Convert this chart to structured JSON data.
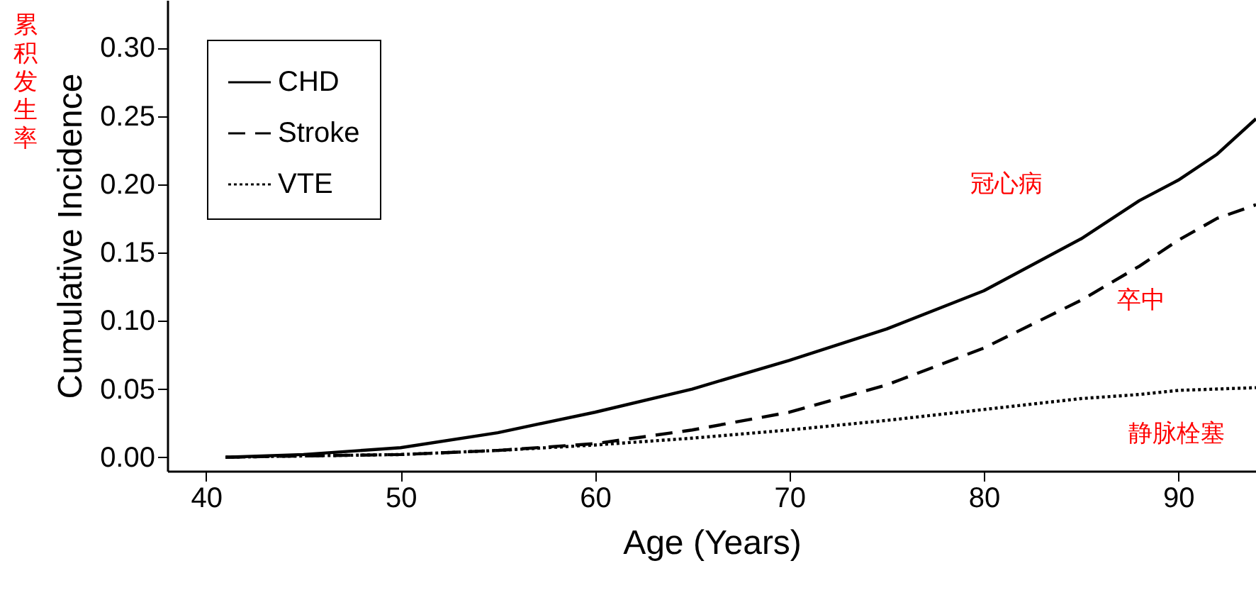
{
  "chart_data": {
    "type": "line",
    "xlabel": "Age (Years)",
    "ylabel": "Cumulative Incidence",
    "xlim": [
      38,
      94
    ],
    "ylim": [
      -0.01,
      0.335
    ],
    "xticks": [
      40,
      50,
      60,
      70,
      80,
      90
    ],
    "yticks": [
      {
        "value": 0,
        "label": "0.00"
      },
      {
        "value": 0.05,
        "label": "0.05"
      },
      {
        "value": 0.1,
        "label": "0.10"
      },
      {
        "value": 0.15,
        "label": "0.15"
      },
      {
        "value": 0.2,
        "label": "0.20"
      },
      {
        "value": 0.25,
        "label": "0.25"
      },
      {
        "value": 0.3,
        "label": "0.30"
      }
    ],
    "grid": false,
    "legend": "top left",
    "x": [
      41,
      45,
      50,
      55,
      60,
      65,
      70,
      75,
      80,
      85,
      88,
      90,
      92,
      94
    ],
    "series": [
      {
        "name": "CHD",
        "color": "#000000",
        "line_style": "solid",
        "values": [
          0,
          0.002,
          0.007,
          0.018,
          0.033,
          0.05,
          0.071,
          0.094,
          0.122,
          0.16,
          0.188,
          0.203,
          0.222,
          0.248
        ]
      },
      {
        "name": "Stroke",
        "color": "#000000",
        "line_style": "dashed",
        "values": [
          0,
          0.001,
          0.002,
          0.005,
          0.01,
          0.02,
          0.033,
          0.053,
          0.08,
          0.115,
          0.14,
          0.159,
          0.175,
          0.185
        ]
      },
      {
        "name": "VTE",
        "color": "#000000",
        "line_style": "dotted",
        "values": [
          0,
          0.001,
          0.002,
          0.005,
          0.009,
          0.014,
          0.02,
          0.027,
          0.035,
          0.043,
          0.046,
          0.049,
          0.05,
          0.051
        ]
      }
    ],
    "annotations": [
      "累积发生率",
      "冠心病",
      "卒中",
      "静脉栓塞"
    ]
  }
}
